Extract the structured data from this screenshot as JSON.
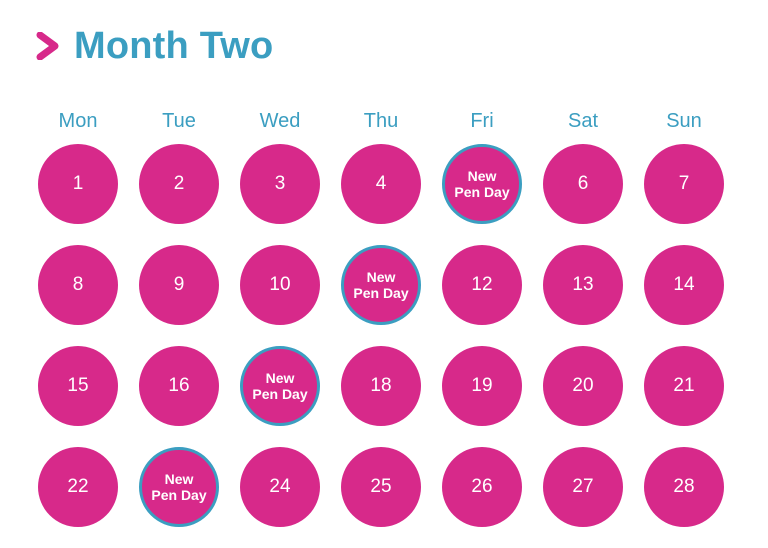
{
  "header": {
    "title": "Month Two",
    "icon": "chevron-right-icon",
    "accent_color": "#d7298a",
    "title_color": "#3b9ec1"
  },
  "calendar": {
    "weekdays": [
      "Mon",
      "Tue",
      "Wed",
      "Thu",
      "Fri",
      "Sat",
      "Sun"
    ],
    "day_color": "#d7298a",
    "highlight_border_color": "#3b9ec1",
    "weeks": [
      [
        {
          "label": "1"
        },
        {
          "label": "2"
        },
        {
          "label": "3"
        },
        {
          "label": "4"
        },
        {
          "label": "New\nPen Day",
          "special": true
        },
        {
          "label": "6"
        },
        {
          "label": "7"
        }
      ],
      [
        {
          "label": "8"
        },
        {
          "label": "9"
        },
        {
          "label": "10"
        },
        {
          "label": "New\nPen Day",
          "special": true
        },
        {
          "label": "12"
        },
        {
          "label": "13"
        },
        {
          "label": "14"
        }
      ],
      [
        {
          "label": "15"
        },
        {
          "label": "16"
        },
        {
          "label": "New\nPen Day",
          "special": true
        },
        {
          "label": "18"
        },
        {
          "label": "19"
        },
        {
          "label": "20"
        },
        {
          "label": "21"
        }
      ],
      [
        {
          "label": "22"
        },
        {
          "label": "New\nPen Day",
          "special": true
        },
        {
          "label": "24"
        },
        {
          "label": "25"
        },
        {
          "label": "26"
        },
        {
          "label": "27"
        },
        {
          "label": "28"
        }
      ]
    ]
  }
}
